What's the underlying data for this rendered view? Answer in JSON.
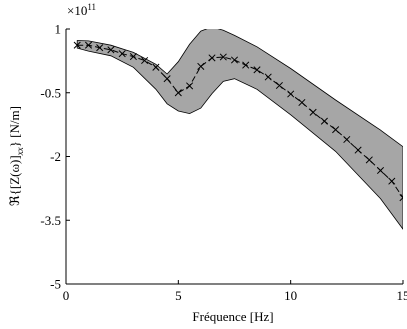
{
  "chart_data": {
    "type": "line",
    "xlabel": "Fréquence [Hz]",
    "ylabel": "ℜ{[Z(ω)]",
    "ylabel_sub": "xx",
    "ylabel_unit": "} [N/m]",
    "exponent_base": "×10",
    "exponent_power": "11",
    "xlim": [
      0,
      15
    ],
    "ylim": [
      -5,
      1
    ],
    "x_ticks": [
      0,
      5,
      10,
      15
    ],
    "x_tick_labels": [
      "0",
      "5",
      "10",
      "15"
    ],
    "y_ticks": [
      1,
      -0.5,
      -2,
      -3.5,
      -5
    ],
    "y_tick_labels": [
      "1",
      "-0.5",
      "-2",
      "-3.5",
      "-5"
    ],
    "grid": false,
    "colors": {
      "band_fill": "#a6a6a6",
      "line": "#000000"
    },
    "band": {
      "x": [
        0.5,
        1.0,
        2.0,
        3.0,
        4.0,
        4.5,
        5.0,
        5.5,
        6.0,
        6.5,
        7.0,
        7.5,
        8.5,
        10.0,
        12.0,
        14.0,
        15.0
      ],
      "upper": [
        0.73,
        0.72,
        0.62,
        0.45,
        0.17,
        -0.06,
        0.23,
        0.64,
        0.95,
        1.05,
        0.97,
        0.85,
        0.58,
        0.07,
        -0.67,
        -1.38,
        -1.77
      ],
      "lower": [
        0.55,
        0.48,
        0.37,
        0.1,
        -0.42,
        -0.76,
        -0.93,
        -0.99,
        -0.86,
        -0.52,
        -0.23,
        -0.17,
        -0.42,
        -1.02,
        -1.88,
        -2.99,
        -3.71
      ]
    },
    "series": [
      {
        "style": "dashed-line-with-x-markers",
        "x": [
          0.5,
          1.0,
          1.5,
          2.0,
          2.5,
          3.0,
          3.5,
          4.0,
          4.5,
          5.0,
          5.5,
          6.0,
          6.5,
          7.0,
          7.5,
          8.0,
          8.5,
          9.0,
          9.5,
          10.0,
          10.5,
          11.0,
          11.5,
          12.0,
          12.5,
          13.0,
          13.5,
          14.0,
          14.5,
          15.0
        ],
        "y": [
          0.62,
          0.62,
          0.56,
          0.51,
          0.42,
          0.35,
          0.26,
          0.1,
          -0.17,
          -0.5,
          -0.34,
          0.12,
          0.32,
          0.34,
          0.27,
          0.15,
          0.04,
          -0.13,
          -0.33,
          -0.53,
          -0.73,
          -0.96,
          -1.17,
          -1.37,
          -1.6,
          -1.85,
          -2.08,
          -2.33,
          -2.58,
          -2.97
        ]
      }
    ]
  }
}
